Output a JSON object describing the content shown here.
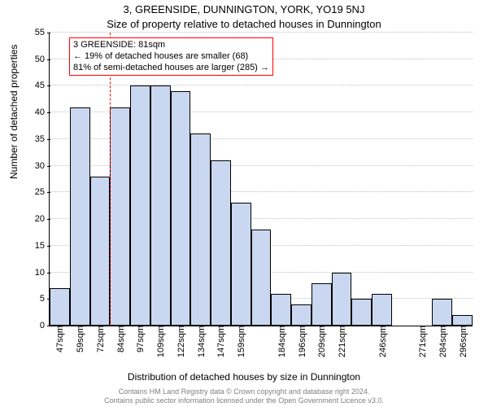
{
  "title_main": "3, GREENSIDE, DUNNINGTON, YORK, YO19 5NJ",
  "title_sub": "Size of property relative to detached houses in Dunnington",
  "ylabel": "Number of detached properties",
  "xlabel": "Distribution of detached houses by size in Dunnington",
  "footer_line1": "Contains HM Land Registry data © Crown copyright and database right 2024.",
  "footer_line2": "Contains public sector information licensed under the Open Government Licence v3.0.",
  "chart": {
    "type": "histogram",
    "ylim": [
      0,
      55
    ],
    "ytick_step": 5,
    "bar_fill": "#c9d8f0",
    "bar_border": "#000000",
    "grid_color": "#bfbfbf",
    "background_color": "#ffffff",
    "marker_color": "#ff0000",
    "marker_x_index": 3,
    "x_labels": [
      "47sqm",
      "59sqm",
      "72sqm",
      "84sqm",
      "97sqm",
      "109sqm",
      "122sqm",
      "134sqm",
      "147sqm",
      "159sqm",
      "",
      "184sqm",
      "196sqm",
      "209sqm",
      "221sqm",
      "",
      "246sqm",
      "",
      "271sqm",
      "284sqm",
      "296sqm"
    ],
    "values": [
      7,
      41,
      28,
      41,
      45,
      45,
      44,
      36,
      31,
      23,
      18,
      6,
      4,
      8,
      10,
      5,
      6,
      0,
      0,
      5,
      2
    ],
    "bar_count": 21
  },
  "annotation": {
    "line1": "3 GREENSIDE: 81sqm",
    "line2": "← 19% of detached houses are smaller (68)",
    "line3": "81% of semi-detached houses are larger (285) →"
  }
}
